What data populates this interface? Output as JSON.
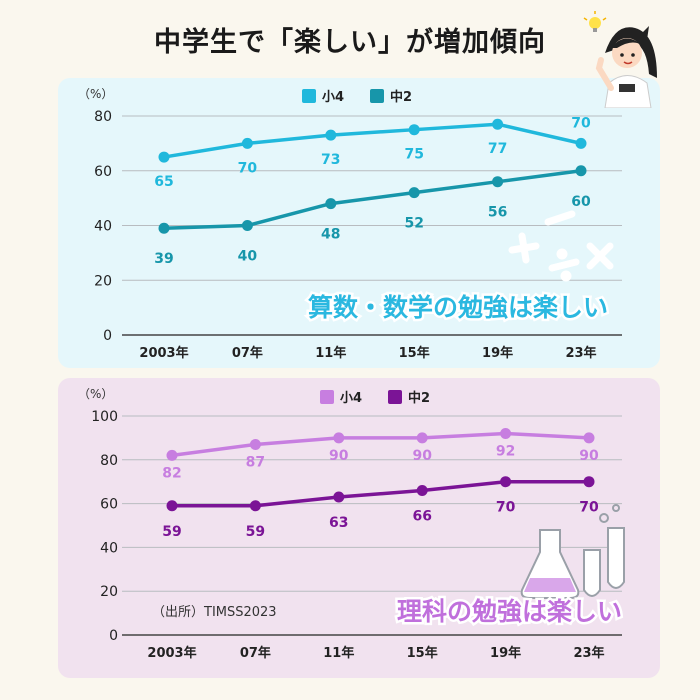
{
  "page_title": "中学生で「楽しい」が増加傾向",
  "source": "（出所）TIMSS2023",
  "colors": {
    "math_grade4": "#20b8dc",
    "math_grade8": "#1796aa",
    "sci_grade4": "#c77ee0",
    "sci_grade8": "#7b1496"
  },
  "chart_data": [
    {
      "type": "line",
      "title": "算数・数学の勉強は楽しい",
      "unit_label": "（%）",
      "categories": [
        "2003年",
        "07年",
        "11年",
        "15年",
        "19年",
        "23年"
      ],
      "series": [
        {
          "name": "小4",
          "values": [
            65,
            70,
            73,
            75,
            77,
            70
          ]
        },
        {
          "name": "中2",
          "values": [
            39,
            40,
            48,
            52,
            56,
            60
          ]
        }
      ],
      "ylim": [
        0,
        80
      ],
      "yticks": [
        0,
        20,
        40,
        60,
        80
      ],
      "grid": true,
      "legend": "top-center",
      "decoration": [
        "+",
        "−",
        "÷",
        "×"
      ]
    },
    {
      "type": "line",
      "title": "理科の勉強は楽しい",
      "unit_label": "（%）",
      "categories": [
        "2003年",
        "07年",
        "11年",
        "15年",
        "19年",
        "23年"
      ],
      "series": [
        {
          "name": "小4",
          "values": [
            82,
            87,
            90,
            90,
            92,
            90
          ]
        },
        {
          "name": "中2",
          "values": [
            59,
            59,
            63,
            66,
            70,
            70
          ]
        }
      ],
      "ylim": [
        0,
        100
      ],
      "yticks": [
        0,
        20,
        40,
        60,
        80,
        100
      ],
      "grid": true,
      "legend": "top-center"
    }
  ]
}
